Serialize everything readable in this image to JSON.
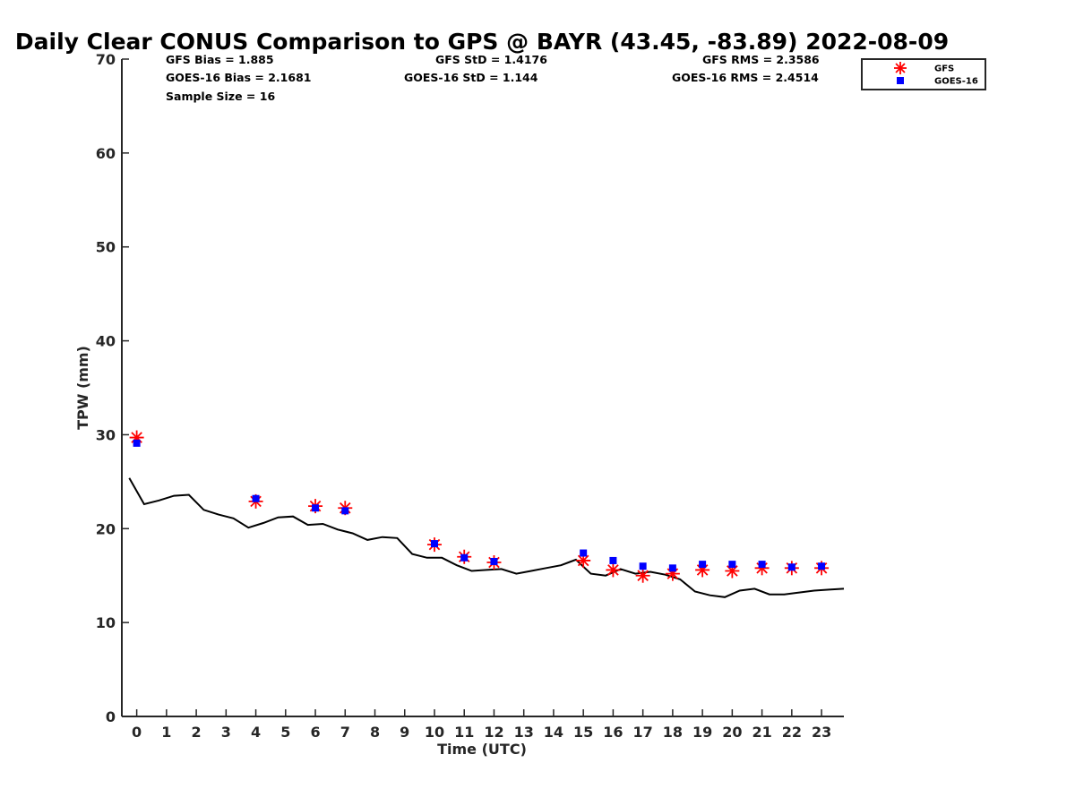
{
  "chart_data": {
    "type": "line",
    "title": "Daily Clear CONUS Comparison to GPS @ BAYR (43.45, -83.89) 2022-08-09",
    "xlabel": "Time (UTC)",
    "ylabel": "TPW (mm)",
    "xlim": [
      -0.5,
      23.75
    ],
    "ylim": [
      0,
      70
    ],
    "xticks": [
      0,
      1,
      2,
      3,
      4,
      5,
      6,
      7,
      8,
      9,
      10,
      11,
      12,
      13,
      14,
      15,
      16,
      17,
      18,
      19,
      20,
      21,
      22,
      23
    ],
    "yticks": [
      0,
      10,
      20,
      30,
      40,
      50,
      60,
      70
    ],
    "grid": false,
    "legend_position": "top-right",
    "stats": {
      "gfs_bias": "GFS Bias = 1.885",
      "goes_bias": "GOES-16 Bias = 2.1681",
      "sample_size": "Sample Size = 16",
      "gfs_std": "GFS StD = 1.4176",
      "goes_std": "GOES-16 StD = 1.144",
      "gfs_rms": "GFS RMS = 2.3586",
      "goes_rms": "GOES-16 RMS = 2.4514"
    },
    "series": [
      {
        "type": "line",
        "color": "#000000",
        "x": [
          -0.25,
          0.25,
          0.75,
          1.25,
          1.75,
          2.25,
          2.75,
          3.25,
          3.75,
          4.25,
          4.75,
          5.25,
          5.75,
          6.25,
          6.75,
          7.25,
          7.75,
          8.25,
          8.75,
          9.25,
          9.75,
          10.25,
          10.75,
          11.25,
          11.75,
          12.25,
          12.75,
          13.25,
          13.75,
          14.25,
          14.75,
          15.25,
          15.75,
          16.25,
          16.75,
          17.25,
          17.75,
          18.25,
          18.75,
          19.25,
          19.75,
          20.25,
          20.75,
          21.25,
          21.75,
          22.25,
          22.75,
          23.25,
          23.75
        ],
        "values": [
          25.4,
          22.6,
          23.0,
          23.5,
          23.6,
          22.0,
          21.5,
          21.1,
          20.1,
          20.6,
          21.2,
          21.3,
          20.4,
          20.5,
          19.9,
          19.5,
          18.8,
          19.1,
          19.0,
          17.3,
          16.9,
          16.9,
          16.1,
          15.5,
          15.6,
          15.7,
          15.2,
          15.5,
          15.8,
          16.1,
          16.7,
          15.2,
          15.0,
          15.7,
          15.2,
          15.4,
          15.1,
          14.6,
          13.3,
          12.9,
          12.7,
          13.4,
          13.6,
          13.0,
          13.0,
          13.2,
          13.4,
          13.5,
          13.6
        ]
      },
      {
        "name": "GFS",
        "type": "scatter",
        "marker": "asterisk",
        "color": "#ff0000",
        "x": [
          0,
          4,
          6,
          7,
          10,
          11,
          12,
          15,
          16,
          17,
          18,
          19,
          20,
          21,
          22,
          23
        ],
        "values": [
          29.7,
          22.9,
          22.4,
          22.2,
          18.3,
          17.0,
          16.4,
          16.6,
          15.6,
          15.0,
          15.2,
          15.6,
          15.5,
          15.8,
          15.8,
          15.8
        ]
      },
      {
        "name": "GOES-16",
        "type": "scatter",
        "marker": "square",
        "color": "#0000ff",
        "x": [
          0,
          4,
          6,
          7,
          10,
          11,
          12,
          15,
          16,
          17,
          18,
          19,
          20,
          21,
          22,
          23
        ],
        "values": [
          29.1,
          23.2,
          22.2,
          21.9,
          18.4,
          16.9,
          16.5,
          17.4,
          16.6,
          16.0,
          15.8,
          16.2,
          16.2,
          16.2,
          15.9,
          16.0
        ]
      }
    ]
  }
}
